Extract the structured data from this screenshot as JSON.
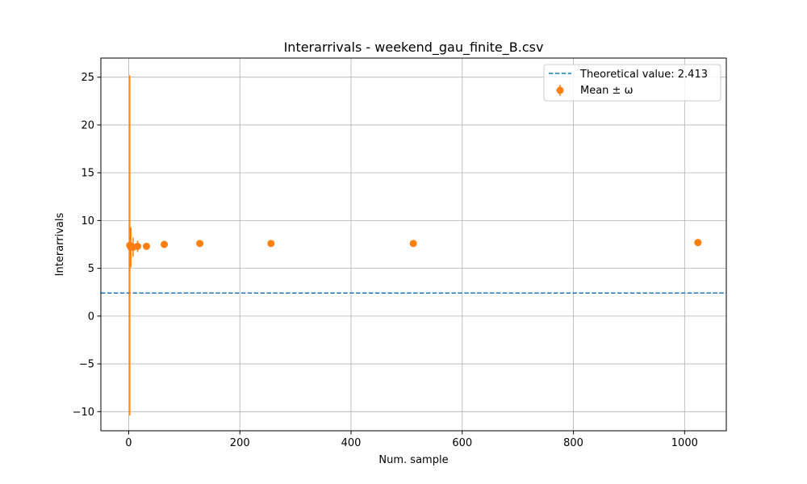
{
  "chart_data": {
    "type": "scatter",
    "title": "Interarrivals - weekend_gau_finite_B.csv",
    "xlabel": "Num. sample",
    "ylabel": "Interarrivals",
    "xlim": [
      -50,
      1075
    ],
    "ylim": [
      -12,
      27
    ],
    "xticks": [
      0,
      200,
      400,
      600,
      800,
      1000
    ],
    "xtick_labels": [
      "0",
      "200",
      "400",
      "600",
      "800",
      "1000"
    ],
    "yticks": [
      -10,
      -5,
      0,
      5,
      10,
      15,
      20,
      25
    ],
    "ytick_labels": [
      "−10",
      "−5",
      "0",
      "5",
      "10",
      "15",
      "20",
      "25"
    ],
    "grid": true,
    "legend_position": "top-right",
    "reference_line": {
      "name": "Theoretical value: 2.413",
      "value": 2.413,
      "style": "dashed",
      "color": "#1f77b4"
    },
    "series": [
      {
        "name": "Mean ± ω",
        "color": "#ff7f0e",
        "x": [
          2,
          4,
          8,
          16,
          32,
          64,
          128,
          256,
          512,
          1024
        ],
        "y": [
          7.4,
          7.2,
          7.2,
          7.3,
          7.3,
          7.5,
          7.6,
          7.6,
          7.6,
          7.7
        ],
        "err": [
          17.8,
          2.1,
          1.0,
          0.6,
          0.3,
          0.15,
          0.1,
          0.07,
          0.05,
          0.03
        ]
      }
    ]
  }
}
